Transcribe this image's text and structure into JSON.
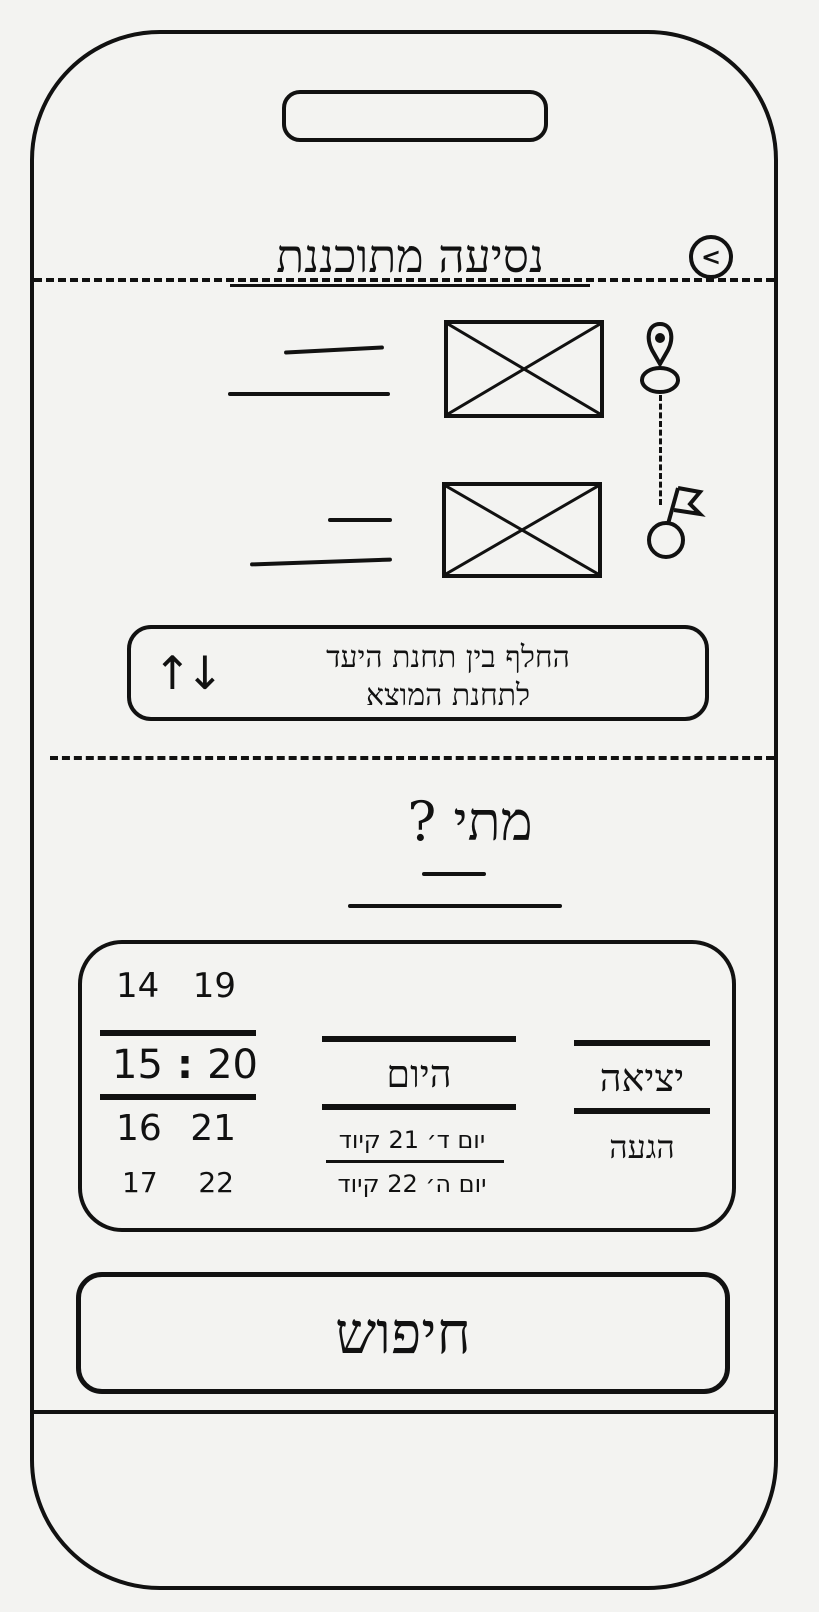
{
  "header": {
    "title": "נסיעה מתוכננת",
    "back_icon": "chevron-left-icon"
  },
  "route": {
    "origin_icon": "map-pin-icon",
    "destination_icon": "flag-icon"
  },
  "swap_button": {
    "label_line1": "החלף בין תחנת היעד",
    "label_line2": "לתחנת המוצא",
    "icon": "swap-vertical-icon",
    "arrows": "↑↓"
  },
  "when": {
    "label": "מתי ?"
  },
  "picker": {
    "type_column": {
      "selected": "יציאה",
      "next": "הגעה"
    },
    "day_column": {
      "selected": "היום",
      "next1": "יום ד׳ 21 קיוד",
      "next2": "יום ה׳ 22 קיוד"
    },
    "time_column": {
      "prev": [
        "14",
        "19"
      ],
      "selected": [
        "15",
        ":",
        "20"
      ],
      "next1": [
        "16",
        "21"
      ],
      "next2": [
        "17",
        "22"
      ]
    }
  },
  "search_button": {
    "label": "חיפוש"
  }
}
